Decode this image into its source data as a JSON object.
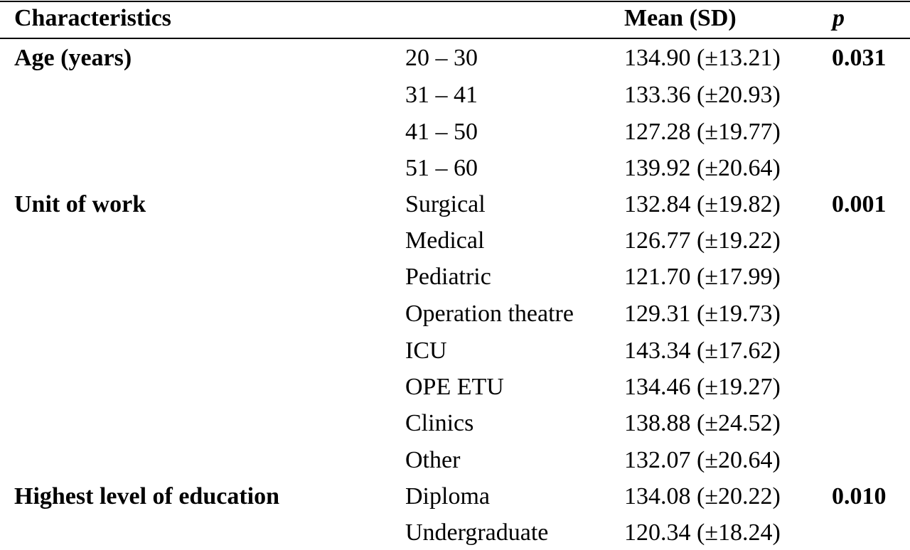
{
  "header": {
    "characteristics": "Characteristics",
    "mean_sd": "Mean (SD)",
    "p": "p"
  },
  "groups": [
    {
      "label": "Age (years)",
      "p": "0.031",
      "rows": [
        {
          "sub": "20 – 30",
          "mean": "134.90 (±13.21)"
        },
        {
          "sub": "31 – 41",
          "mean": "133.36 (±20.93)"
        },
        {
          "sub": "41 – 50",
          "mean": "127.28 (±19.77)"
        },
        {
          "sub": "51 – 60",
          "mean": "139.92 (±20.64)"
        }
      ]
    },
    {
      "label": "Unit of work",
      "p": "0.001",
      "rows": [
        {
          "sub": "Surgical",
          "mean": "132.84 (±19.82)"
        },
        {
          "sub": "Medical",
          "mean": "126.77 (±19.22)"
        },
        {
          "sub": "Pediatric",
          "mean": "121.70 (±17.99)"
        },
        {
          "sub": "Operation theatre",
          "mean": "129.31 (±19.73)"
        },
        {
          "sub": "ICU",
          "mean": "143.34 (±17.62)"
        },
        {
          "sub": "OPE ETU",
          "mean": "134.46 (±19.27)"
        },
        {
          "sub": "Clinics",
          "mean": "138.88 (±24.52)"
        },
        {
          "sub": "Other",
          "mean": "132.07 (±20.64)"
        }
      ]
    },
    {
      "label": "Highest level of education",
      "p": "0.010",
      "rows": [
        {
          "sub": "Diploma",
          "mean": "134.08 (±20.22)"
        },
        {
          "sub": "Undergraduate",
          "mean": "120.34 (±18.24)"
        }
      ]
    }
  ]
}
